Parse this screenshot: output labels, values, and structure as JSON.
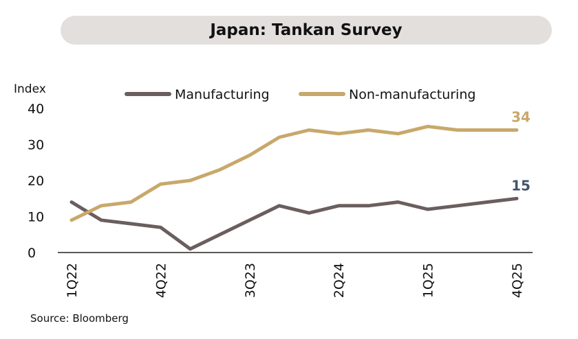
{
  "chart_data": {
    "type": "line",
    "title": "Japan: Tankan Survey",
    "ylabel": "Index",
    "xlabel": "",
    "source": "Source: Bloomberg",
    "ylim": [
      0,
      40
    ],
    "yticks": [
      "0",
      "10",
      "20",
      "30",
      "40"
    ],
    "x": [
      "1Q22",
      "2Q22",
      "3Q22",
      "4Q22",
      "1Q23",
      "2Q23",
      "3Q23",
      "4Q23",
      "1Q24",
      "2Q24",
      "3Q24",
      "4Q24",
      "1Q25",
      "2Q25",
      "3Q25",
      "4Q25"
    ],
    "xtick_labels": [
      "1Q22",
      "4Q22",
      "3Q23",
      "2Q24",
      "1Q25",
      "4Q25"
    ],
    "grid": false,
    "legend_position": "top",
    "series": [
      {
        "name": "Manufacturing",
        "color": "#6b5e5f",
        "values": [
          14,
          9,
          8,
          7,
          1,
          5,
          9,
          13,
          11,
          13,
          13,
          14,
          12,
          13,
          14,
          15
        ],
        "end_label": "15",
        "end_label_color": "#44536b"
      },
      {
        "name": "Non-manufacturing",
        "color": "#c8a86b",
        "values": [
          9,
          13,
          14,
          19,
          20,
          23,
          27,
          32,
          34,
          33,
          34,
          33,
          35,
          34,
          34,
          34
        ],
        "end_label": "34",
        "end_label_color": "#c8a86b"
      }
    ]
  }
}
